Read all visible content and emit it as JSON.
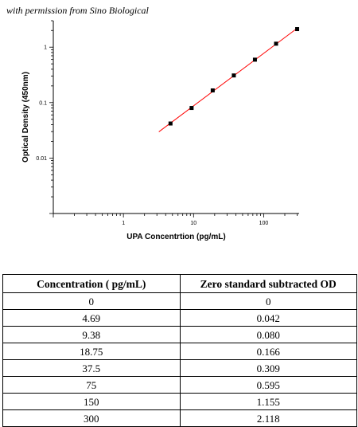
{
  "permission_note": "with permission from Sino Biological",
  "chart_data": {
    "type": "scatter",
    "xscale": "log",
    "yscale": "log",
    "xlabel": "UPA Concentrtion (pg/mL)",
    "ylabel": "Optical Density (450nm)",
    "xlim": [
      0.1,
      320
    ],
    "ylim": [
      0.001,
      3
    ],
    "x_ticks": [
      1,
      10,
      100
    ],
    "x_tick_labels": [
      "1",
      "10",
      "100"
    ],
    "y_ticks": [
      0.01,
      0.1,
      1
    ],
    "y_tick_labels": [
      "0.01",
      "0.1",
      "1"
    ],
    "points": [
      {
        "x": 4.69,
        "y": 0.042
      },
      {
        "x": 9.38,
        "y": 0.08
      },
      {
        "x": 18.75,
        "y": 0.166
      },
      {
        "x": 37.5,
        "y": 0.309
      },
      {
        "x": 75,
        "y": 0.595
      },
      {
        "x": 150,
        "y": 1.155
      },
      {
        "x": 300,
        "y": 2.118
      }
    ],
    "fit_line": {
      "x_range": [
        3.2,
        300
      ],
      "color": "#ff0000"
    },
    "marker_color": "#000000",
    "grid": false
  },
  "table": {
    "headers": [
      "Concentration ( pg/mL)",
      "Zero standard subtracted OD"
    ],
    "rows": [
      [
        "0",
        "0"
      ],
      [
        "4.69",
        "0.042"
      ],
      [
        "9.38",
        "0.080"
      ],
      [
        "18.75",
        "0.166"
      ],
      [
        "37.5",
        "0.309"
      ],
      [
        "75",
        "0.595"
      ],
      [
        "150",
        "1.155"
      ],
      [
        "300",
        "2.118"
      ]
    ]
  }
}
